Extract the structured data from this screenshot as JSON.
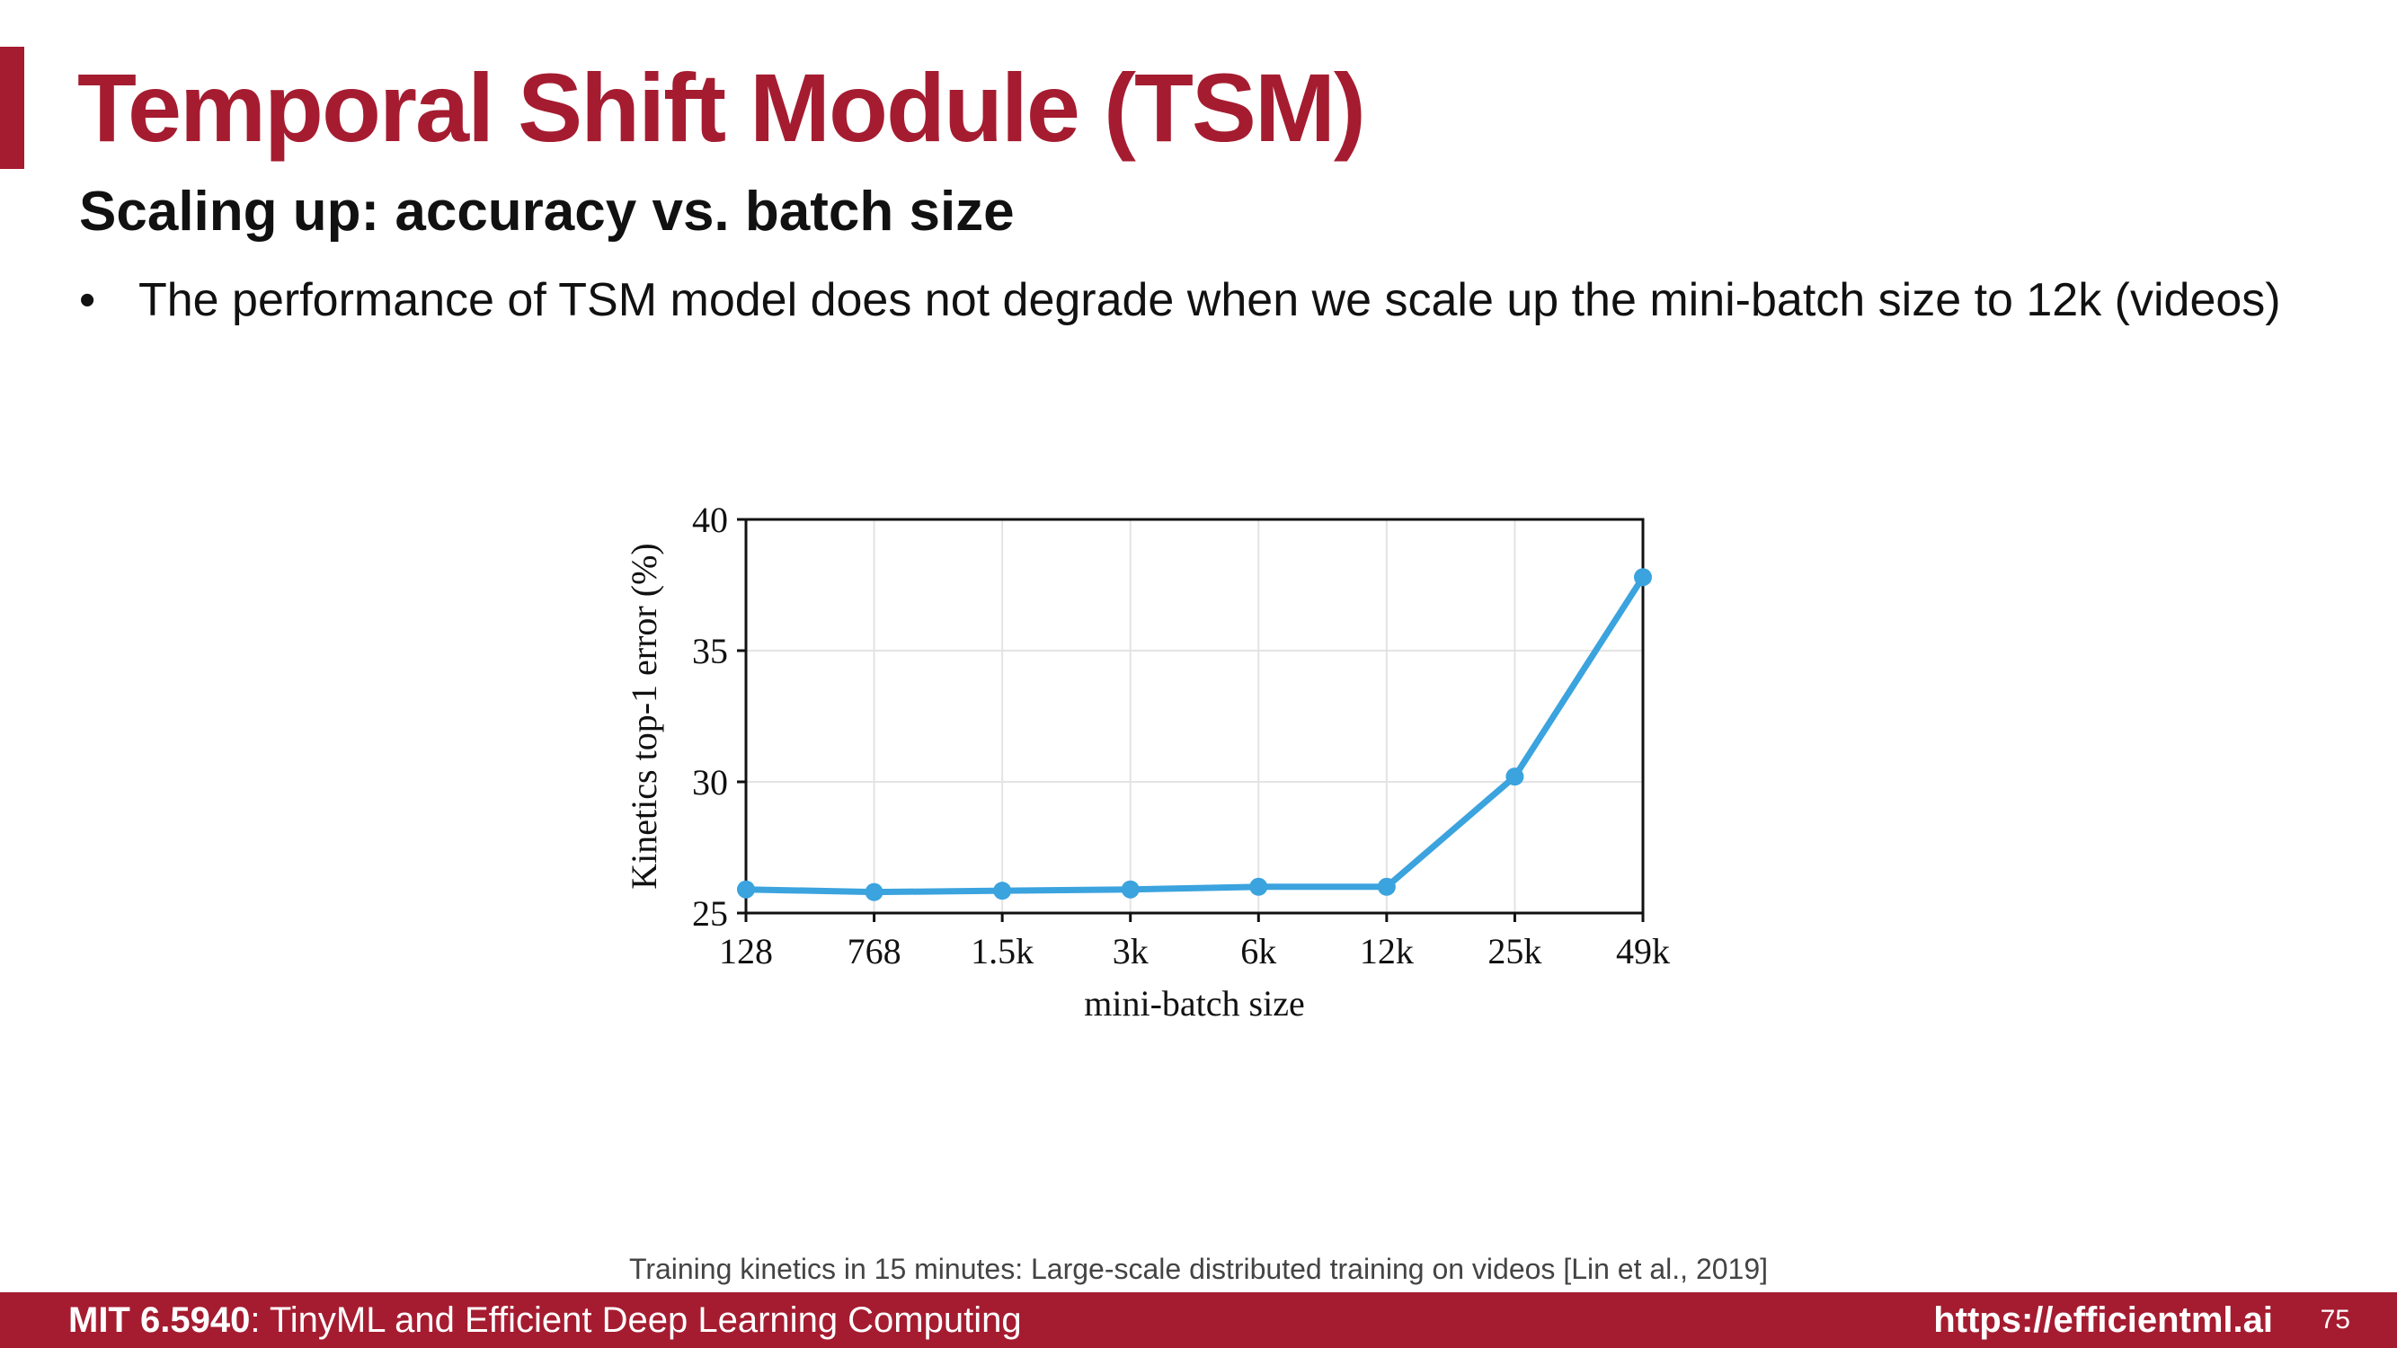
{
  "slide": {
    "title": "Temporal Shift Module (TSM)",
    "subtitle": "Scaling up: accuracy vs. batch size",
    "bullets": [
      "The performance of TSM model does not degrade when we scale up the mini-batch size to 12k (videos)"
    ],
    "citation": "Training kinetics in 15 minutes: Large-scale distributed training on videos [Lin et al., 2019]"
  },
  "footer": {
    "course_code": "MIT 6.5940",
    "course_name": ": TinyML and Efficient Deep Learning Computing",
    "url": "https://efficientml.ai",
    "page_number": "75"
  },
  "colors": {
    "accent": "#a51c30",
    "line": "#3ba3de",
    "grid": "#e3e3e3"
  },
  "chart_data": {
    "type": "line",
    "xlabel": "mini-batch size",
    "ylabel": "Kinetics top-1 error (%)",
    "categories": [
      "128",
      "768",
      "1.5k",
      "3k",
      "6k",
      "12k",
      "25k",
      "49k"
    ],
    "values": [
      25.9,
      25.8,
      25.85,
      25.9,
      26.0,
      26.0,
      30.2,
      37.8
    ],
    "yticks": [
      25,
      30,
      35,
      40
    ],
    "ylim": [
      25,
      40
    ],
    "grid": true
  }
}
